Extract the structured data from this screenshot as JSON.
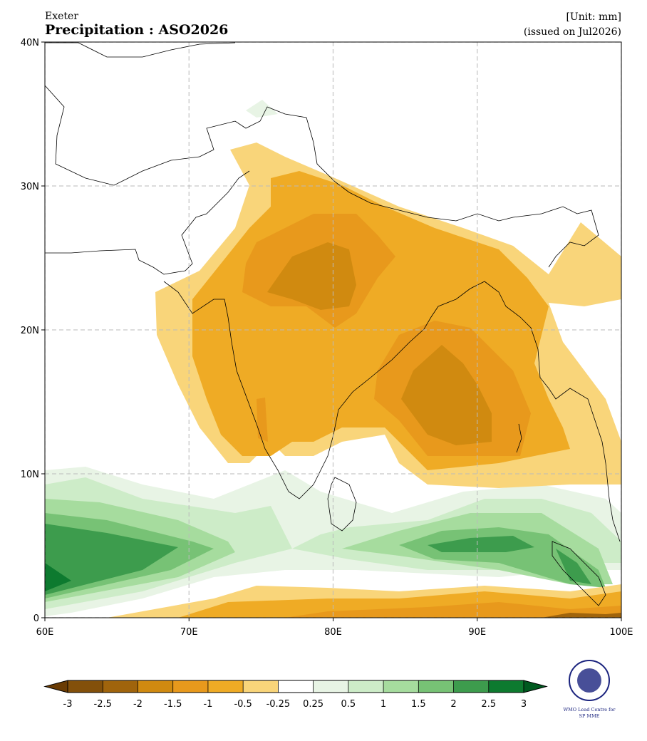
{
  "map": {
    "source": "Exeter",
    "title": "Precipitation : ASO2026",
    "unit": "[Unit: mm]",
    "issued": "(issued on Jul2026)",
    "lonlim": [
      60,
      100
    ],
    "latlim": [
      0,
      40
    ],
    "lonticks": [
      {
        "value": 60,
        "label": "60E"
      },
      {
        "value": 70,
        "label": "70E"
      },
      {
        "value": 80,
        "label": "80E"
      },
      {
        "value": 90,
        "label": "90E"
      },
      {
        "value": 100,
        "label": "100E"
      }
    ],
    "latticks": [
      {
        "value": 0,
        "label": "0"
      },
      {
        "value": 10,
        "label": "10N"
      },
      {
        "value": 20,
        "label": "20N"
      },
      {
        "value": 30,
        "label": "30N"
      },
      {
        "value": 40,
        "label": "40N"
      }
    ],
    "grid": true,
    "colorbar": {
      "levels": [
        -3,
        -2.5,
        -2,
        -1.5,
        -1,
        -0.5,
        -0.25,
        0.25,
        0.5,
        1,
        1.5,
        2,
        2.5,
        3
      ],
      "colors": [
        "#83500a",
        "#a0640c",
        "#d08a10",
        "#e8991c",
        "#efab25",
        "#f9d57a",
        "#ffffff",
        "#e8f4e5",
        "#cdecc8",
        "#a6dc9e",
        "#77c275",
        "#3d9c4d",
        "#0d7a2f"
      ],
      "under_color": "#6a3c04",
      "over_color": "#005a20"
    },
    "logo": {
      "line1": "WMO Lead Centre for",
      "line2": "SP MME"
    }
  }
}
